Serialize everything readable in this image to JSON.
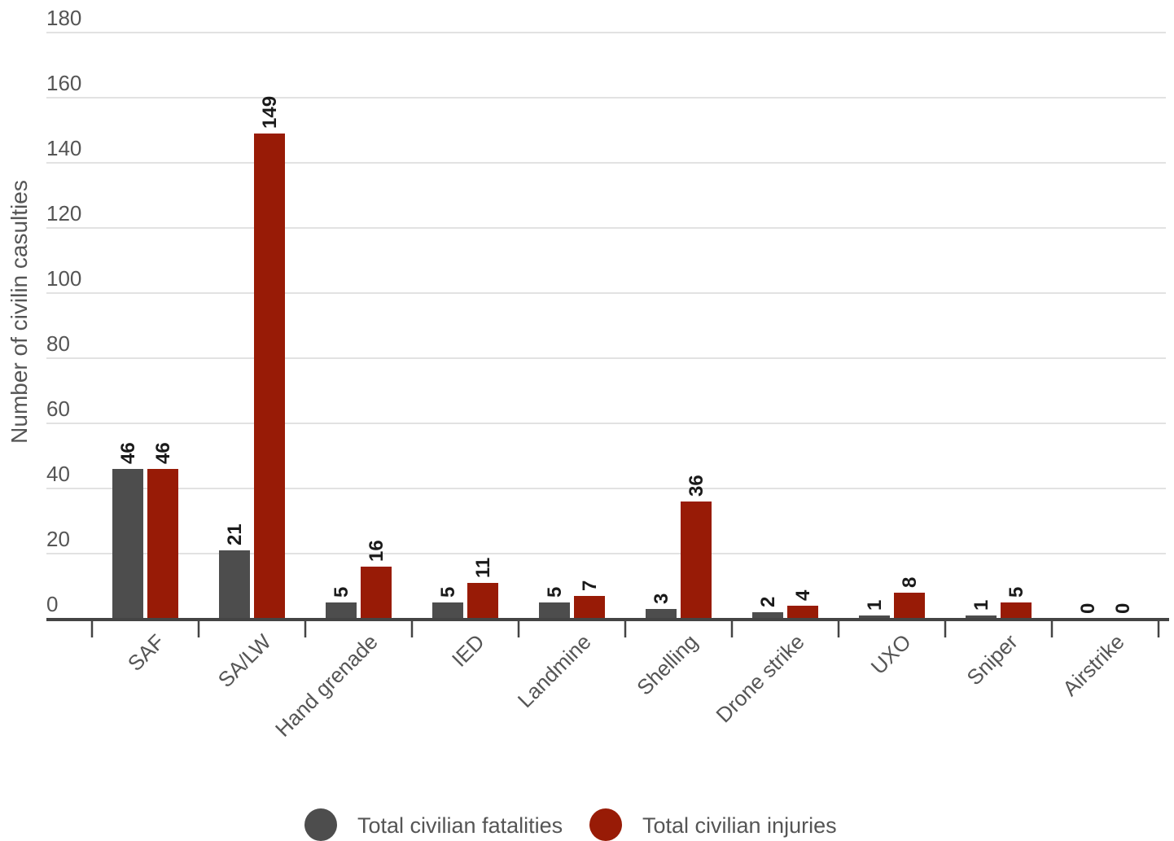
{
  "chart_data": {
    "type": "bar",
    "title": "",
    "xlabel": "",
    "ylabel": "Number of civilin casulties",
    "ylim": [
      0,
      180
    ],
    "yticks": [
      0,
      20,
      40,
      60,
      80,
      100,
      120,
      140,
      160,
      180
    ],
    "grid": true,
    "legend_position": "bottom",
    "categories": [
      "SAF",
      "SA/LW",
      "Hand grenade",
      "IED",
      "Landmine",
      "Shelling",
      "Drone strike",
      "UXO",
      "Sniper",
      "Airstrike"
    ],
    "series": [
      {
        "name": "Total civilian fatalities",
        "color": "#4d4d4d",
        "values": [
          46,
          21,
          5,
          5,
          5,
          3,
          2,
          1,
          1,
          0
        ]
      },
      {
        "name": "Total civilian injuries",
        "color": "#981b06",
        "values": [
          46,
          149,
          16,
          11,
          7,
          36,
          4,
          8,
          5,
          0
        ]
      }
    ]
  }
}
